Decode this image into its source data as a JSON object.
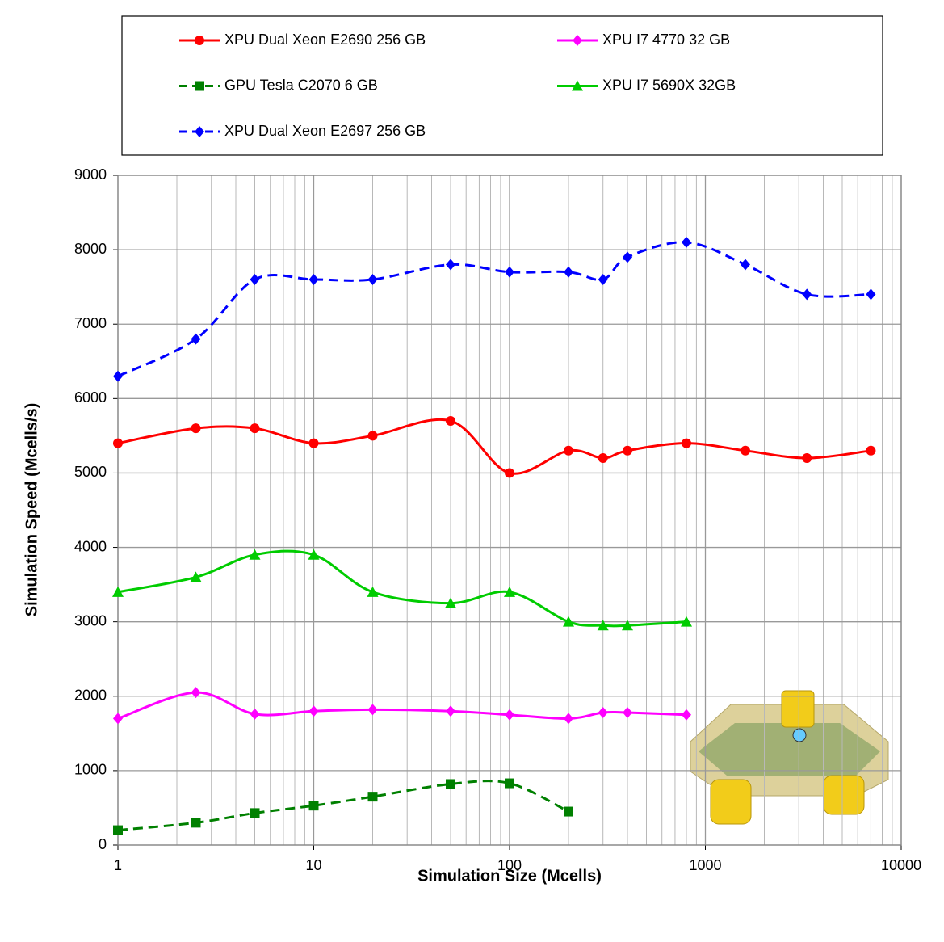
{
  "chart_data": {
    "type": "line",
    "x_label": "Simulation Size (Mcells)",
    "y_label": "Simulation Speed (Mcells/s)",
    "x": [
      1,
      2.5,
      5,
      10,
      20,
      50,
      100,
      200,
      300,
      400,
      800,
      1600,
      3300,
      7000
    ],
    "series": [
      {
        "name": "XPU Dual Xeon E2690 256 GB",
        "color": "#ff0000",
        "marker": "circle",
        "dashed": false,
        "values": [
          5400,
          5600,
          5600,
          5400,
          5500,
          5700,
          5000,
          5300,
          5200,
          5300,
          5400,
          5300,
          5200,
          5300
        ]
      },
      {
        "name": "XPU I7 4770 32 GB",
        "color": "#ff00ff",
        "marker": "diamond",
        "dashed": false,
        "values": [
          1700,
          2050,
          1760,
          1800,
          1820,
          1800,
          1750,
          1700,
          1780,
          1780,
          1750,
          null,
          null,
          null
        ]
      },
      {
        "name": "GPU Tesla C2070 6 GB",
        "color": "#008000",
        "marker": "square",
        "dashed": true,
        "values": [
          200,
          300,
          430,
          530,
          650,
          820,
          830,
          450,
          null,
          null,
          null,
          null,
          null,
          null
        ]
      },
      {
        "name": "XPU I7 5690X 32GB",
        "color": "#00cc00",
        "marker": "triangle",
        "dashed": false,
        "values": [
          3400,
          3600,
          3900,
          3900,
          3400,
          3250,
          3400,
          3000,
          2950,
          2950,
          3000,
          null,
          null,
          null
        ]
      },
      {
        "name": "XPU Dual Xeon E2697 256 GB",
        "color": "#0000ff",
        "marker": "diamond",
        "dashed": true,
        "values": [
          6300,
          6800,
          7600,
          7600,
          7600,
          7800,
          7700,
          7700,
          7600,
          7900,
          8100,
          7800,
          7400,
          7400
        ]
      }
    ],
    "xlog": true,
    "xlim": [
      1,
      10000
    ],
    "xticks": [
      1,
      10,
      100,
      1000,
      10000
    ],
    "ylim": [
      0,
      9000
    ],
    "yticks": [
      0,
      1000,
      2000,
      3000,
      4000,
      5000,
      6000,
      7000,
      8000,
      9000
    ],
    "grid": true
  }
}
